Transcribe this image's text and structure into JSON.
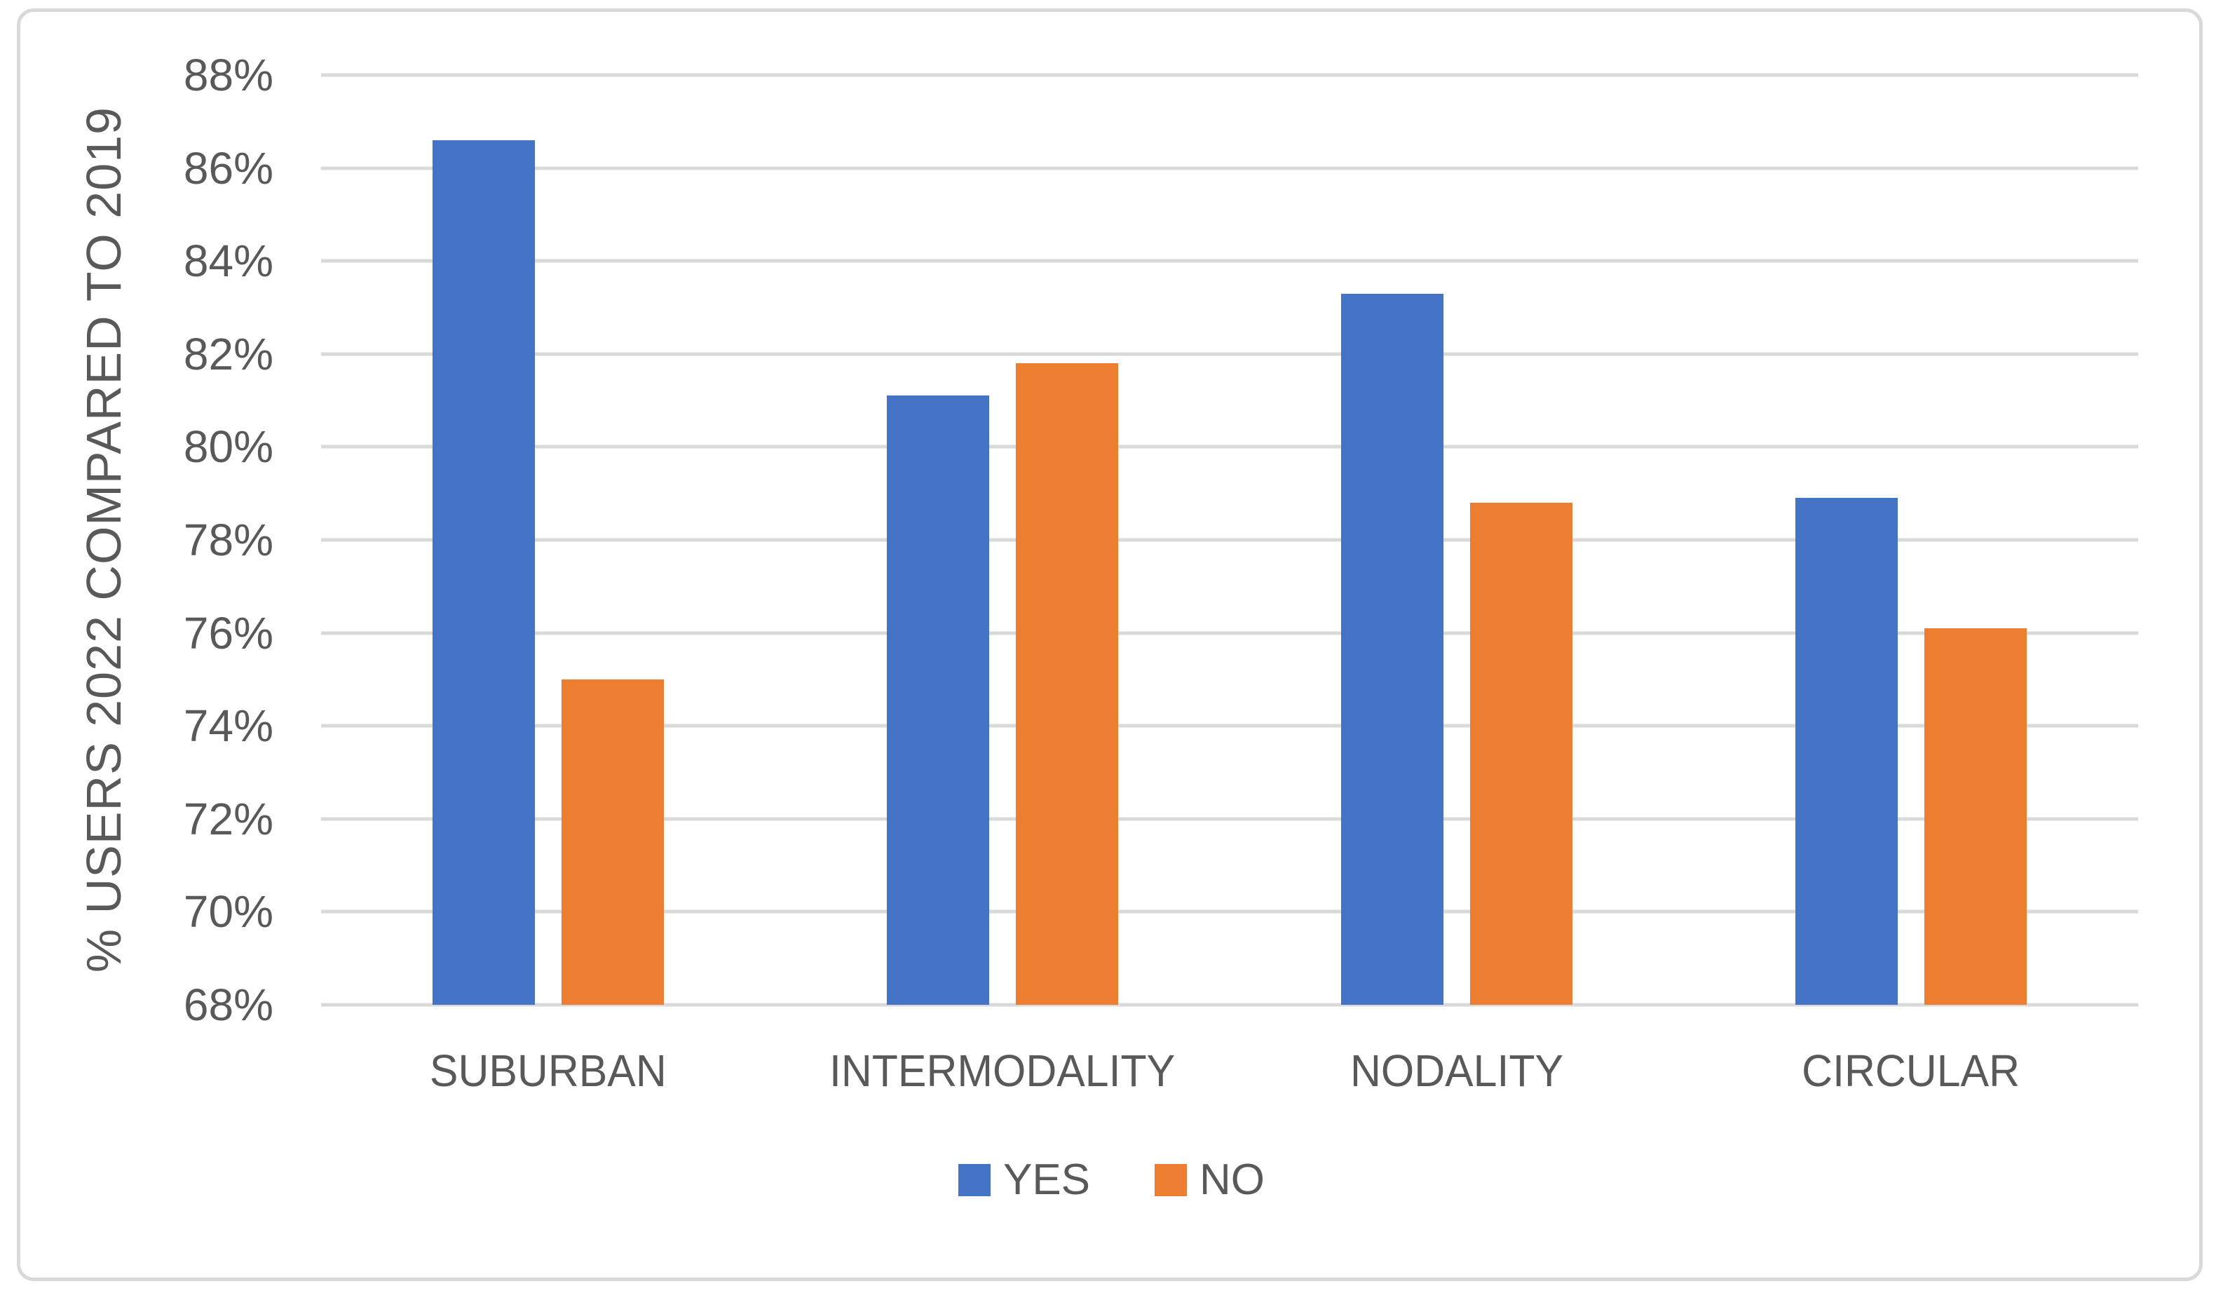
{
  "chart_data": {
    "type": "bar",
    "title": "",
    "categories": [
      "SUBURBAN",
      "INTERMODALITY",
      "NODALITY",
      "CIRCULAR"
    ],
    "series": [
      {
        "name": "YES",
        "color": "#4472C4",
        "values": [
          86.6,
          81.1,
          83.3,
          78.9
        ]
      },
      {
        "name": "NO",
        "color": "#ED7D31",
        "values": [
          75.0,
          81.8,
          78.8,
          76.1
        ]
      }
    ],
    "xlabel": "",
    "ylabel": "% USERS 2022 COMPARED TO 2019",
    "ylim": [
      68,
      88
    ],
    "ytick_step": 2,
    "ytick_labels": [
      "68%",
      "70%",
      "72%",
      "74%",
      "76%",
      "78%",
      "80%",
      "82%",
      "84%",
      "86%",
      "88%"
    ],
    "grid": true,
    "legend_position": "bottom"
  },
  "colors": {
    "series_yes": "#4472C4",
    "series_no": "#ED7D31",
    "gridline": "#D9D9D9",
    "frame_border": "#D9D9D9",
    "text": "#595959",
    "background": "#FFFFFF"
  }
}
